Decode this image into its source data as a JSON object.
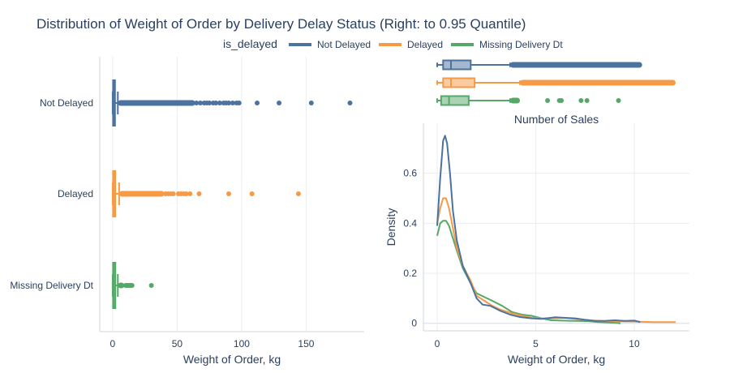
{
  "title": "Distribution of Weight of Order by Delivery Delay Status (Right: to 0.95 Quantile)",
  "legend": {
    "title": "is_delayed",
    "items": [
      {
        "name": "Not Delayed",
        "color": "#4c72a0"
      },
      {
        "name": "Delayed",
        "color": "#f79a45"
      },
      {
        "name": "Missing Delivery Dt",
        "color": "#55a868"
      }
    ]
  },
  "chart_data": [
    {
      "type": "box",
      "orientation": "horizontal",
      "xlabel": "Weight of Order, kg",
      "xlim": [
        -10,
        195
      ],
      "xticks": [
        0,
        50,
        100,
        150
      ],
      "grid": true,
      "categories": [
        "Not Delayed",
        "Delayed",
        "Missing Delivery Dt"
      ],
      "series": [
        {
          "name": "Not Delayed",
          "color": "#4c72a0",
          "q1": 0.3,
          "median": 0.8,
          "q3": 1.8,
          "whisker_low": 0.0,
          "whisker_high": 4.0,
          "outliers_dense": [
            4.0,
            64.0
          ],
          "outliers": [
            65,
            68,
            71,
            73,
            75,
            78,
            80,
            83,
            86,
            88,
            90,
            93,
            96,
            98,
            112,
            129,
            154,
            184
          ]
        },
        {
          "name": "Delayed",
          "color": "#f79a45",
          "q1": 0.3,
          "median": 0.9,
          "q3": 2.0,
          "whisker_low": 0.0,
          "whisker_high": 5.0,
          "outliers_dense": [
            5.0,
            40.0
          ],
          "outliers": [
            41,
            43,
            45,
            47,
            51,
            53,
            55,
            57,
            60,
            67,
            90,
            108,
            144
          ]
        },
        {
          "name": "Missing Delivery Dt",
          "color": "#55a868",
          "q1": 0.3,
          "median": 0.8,
          "q3": 2.1,
          "whisker_low": 0.0,
          "whisker_high": 4.0,
          "outliers_dense": [
            4.0,
            9.0
          ],
          "outliers": [
            10,
            11,
            12,
            13,
            14,
            15,
            30
          ]
        }
      ]
    },
    {
      "type": "box",
      "orientation": "horizontal",
      "title": "Number of Sales",
      "xlim": [
        -0.7,
        12.8
      ],
      "series": [
        {
          "name": "Not Delayed",
          "color": "#4c72a0",
          "q1": 0.3,
          "median": 0.7,
          "q3": 1.7,
          "whisker_low": 0.0,
          "whisker_high": 3.7,
          "outliers_dense": [
            3.7,
            10.4
          ],
          "outliers": []
        },
        {
          "name": "Delayed",
          "color": "#f79a45",
          "q1": 0.3,
          "median": 0.7,
          "q3": 1.9,
          "whisker_low": 0.0,
          "whisker_high": 4.2,
          "outliers_dense": [
            4.2,
            12.1
          ],
          "outliers": []
        },
        {
          "name": "Missing Delivery Dt",
          "color": "#55a868",
          "q1": 0.2,
          "median": 0.6,
          "q3": 1.6,
          "whisker_low": 0.0,
          "whisker_high": 3.7,
          "outliers_dense": [
            3.7,
            4.2
          ],
          "outliers": [
            5.6,
            6.2,
            6.3,
            7.3,
            7.6,
            9.2
          ]
        }
      ]
    },
    {
      "type": "line",
      "xlabel": "Weight of Order, kg",
      "ylabel": "Density",
      "xlim": [
        -0.7,
        12.8
      ],
      "ylim": [
        -0.03,
        0.8
      ],
      "xticks": [
        0,
        5,
        10
      ],
      "yticks": [
        0,
        0.2,
        0.4,
        0.6
      ],
      "grid": true,
      "series": [
        {
          "name": "Not Delayed",
          "color": "#4c72a0",
          "x": [
            0,
            0.15,
            0.3,
            0.4,
            0.5,
            0.65,
            0.8,
            1.0,
            1.3,
            1.7,
            2.0,
            2.3,
            2.7,
            3.2,
            3.7,
            4.2,
            4.8,
            5.3,
            6.0,
            6.5,
            7.0,
            7.5,
            8.0,
            8.5,
            9.0,
            9.5,
            10.0,
            10.3
          ],
          "y": [
            0.39,
            0.58,
            0.73,
            0.75,
            0.72,
            0.6,
            0.45,
            0.33,
            0.23,
            0.16,
            0.1,
            0.075,
            0.07,
            0.05,
            0.035,
            0.025,
            0.02,
            0.018,
            0.024,
            0.022,
            0.02,
            0.014,
            0.01,
            0.01,
            0.012,
            0.01,
            0.011,
            0.005
          ]
        },
        {
          "name": "Delayed",
          "color": "#f79a45",
          "x": [
            0,
            0.15,
            0.3,
            0.45,
            0.6,
            0.8,
            1.0,
            1.3,
            1.7,
            2.0,
            2.4,
            2.8,
            3.2,
            3.8,
            4.3,
            4.8,
            5.3,
            5.8,
            6.5,
            7.0,
            7.5,
            8.0,
            8.5,
            9.0,
            10.0,
            11.0,
            12.1
          ],
          "y": [
            0.4,
            0.46,
            0.5,
            0.5,
            0.46,
            0.38,
            0.3,
            0.23,
            0.17,
            0.11,
            0.09,
            0.07,
            0.055,
            0.04,
            0.03,
            0.022,
            0.02,
            0.02,
            0.022,
            0.018,
            0.014,
            0.011,
            0.009,
            0.008,
            0.007,
            0.005,
            0.005
          ]
        },
        {
          "name": "Missing Delivery Dt",
          "color": "#55a868",
          "x": [
            0,
            0.15,
            0.3,
            0.45,
            0.6,
            0.8,
            1.0,
            1.3,
            1.7,
            2.0,
            2.4,
            2.8,
            3.3,
            3.8,
            4.3,
            4.8,
            5.3,
            5.8,
            6.3,
            7.0,
            7.6,
            8.2,
            9.0,
            9.3
          ],
          "y": [
            0.35,
            0.4,
            0.41,
            0.41,
            0.39,
            0.34,
            0.29,
            0.22,
            0.16,
            0.12,
            0.105,
            0.09,
            0.07,
            0.045,
            0.035,
            0.03,
            0.02,
            0.012,
            0.011,
            0.01,
            0.009,
            0.005,
            0.002,
            0.0
          ]
        }
      ]
    }
  ]
}
